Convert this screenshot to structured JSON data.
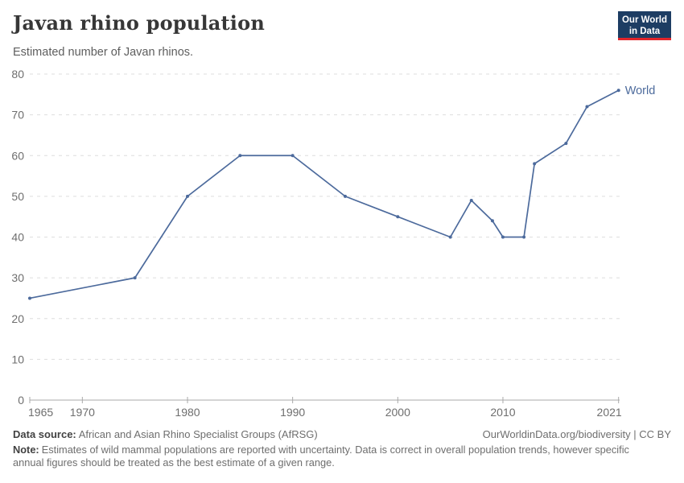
{
  "header": {
    "title": "Javan rhino population",
    "subtitle": "Estimated number of Javan rhinos.",
    "logo": {
      "line1": "Our World",
      "line2": "in Data",
      "bg_color": "#1d3d63",
      "accent_color": "#e2262b"
    }
  },
  "chart_data": {
    "type": "line",
    "title": "Javan rhino population",
    "subtitle": "Estimated number of Javan rhinos.",
    "xlabel": "",
    "ylabel": "",
    "xlim": [
      1965,
      2021
    ],
    "ylim": [
      0,
      80
    ],
    "x_ticks": [
      1965,
      1970,
      1980,
      1990,
      2000,
      2010,
      2021
    ],
    "y_ticks": [
      0,
      10,
      20,
      30,
      40,
      50,
      60,
      70,
      80
    ],
    "grid": "horizontal-dashed",
    "legend_position": "end-of-line",
    "series": [
      {
        "name": "World",
        "color": "#4c6a9c",
        "points": [
          [
            1965,
            25
          ],
          [
            1975,
            30
          ],
          [
            1980,
            50
          ],
          [
            1985,
            60
          ],
          [
            1990,
            60
          ],
          [
            1995,
            50
          ],
          [
            2000,
            45
          ],
          [
            2005,
            40
          ],
          [
            2007,
            49
          ],
          [
            2009,
            44
          ],
          [
            2010,
            40
          ],
          [
            2012,
            40
          ],
          [
            2013,
            58
          ],
          [
            2016,
            63
          ],
          [
            2018,
            72
          ],
          [
            2021,
            76
          ]
        ]
      }
    ],
    "colors": {
      "grid": "#dedede",
      "axis": "#a9a9a9",
      "tick_text": "#6e6e6e"
    }
  },
  "footer": {
    "data_source_label": "Data source:",
    "data_source": "African and Asian Rhino Specialist Groups (AfRSG)",
    "attribution": "OurWorldinData.org/biodiversity | CC BY",
    "note_label": "Note:",
    "note": "Estimates of wild mammal populations are reported with uncertainty. Data is correct in overall population trends, however specific annual figures should be treated as the best estimate of a given range."
  }
}
